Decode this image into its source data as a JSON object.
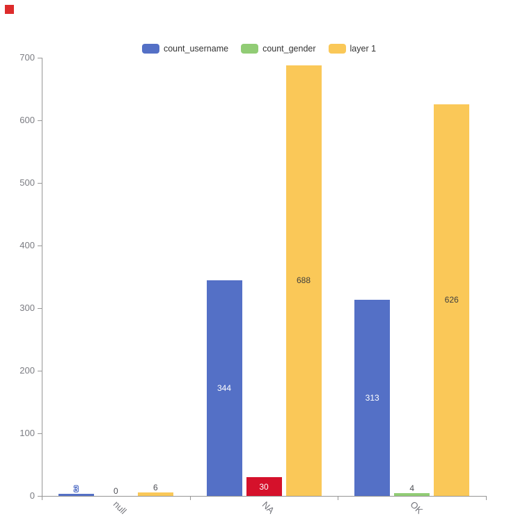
{
  "marker": {
    "color": "#dd2b2b"
  },
  "legend": {
    "items": [
      {
        "label": "count_username",
        "color": "#5470c6"
      },
      {
        "label": "count_gender",
        "color": "#91cc75"
      },
      {
        "label": "layer 1",
        "color": "#fac858"
      }
    ]
  },
  "chart_data": {
    "type": "bar",
    "categories": [
      "null",
      "NA",
      "OK"
    ],
    "series": [
      {
        "name": "count_username",
        "color": "#5470c6",
        "values": [
          3,
          344,
          313
        ]
      },
      {
        "name": "count_gender",
        "color": "#91cc75",
        "values": [
          0,
          30,
          4
        ],
        "point_colors": [
          null,
          "#d5112b",
          null
        ]
      },
      {
        "name": "layer 1",
        "color": "#fac858",
        "values": [
          6,
          688,
          626
        ]
      }
    ],
    "title": "",
    "xlabel": "",
    "ylabel": "",
    "ylim": [
      0,
      700
    ],
    "yticks": [
      0,
      100,
      200,
      300,
      400,
      500,
      600,
      700
    ],
    "grid": false,
    "legend_position": "top",
    "value_labels": true
  },
  "axis": {
    "ytick_label_color": "#7b7c82",
    "category_label_color": "#73747b",
    "line_color": "#969696"
  },
  "labels": {
    "inside_light_color": "#ffffff",
    "inside_dark_color": "#3e3e3e",
    "outside_dark_color": "#4e4f55"
  }
}
